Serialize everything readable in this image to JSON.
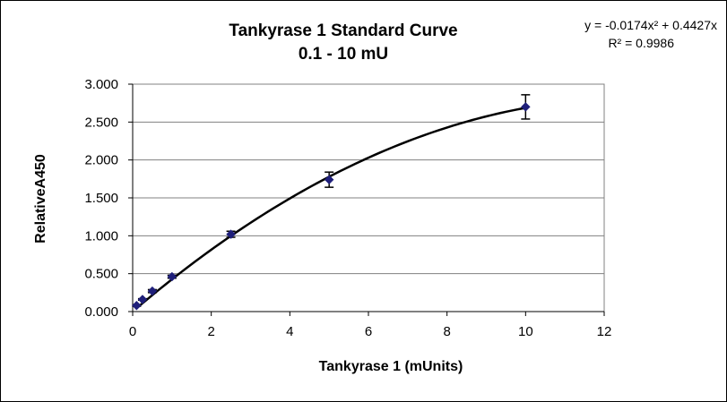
{
  "chart_data": {
    "type": "scatter",
    "title": "Tankyrase 1 Standard Curve",
    "subtitle": "0.1 - 10 mU",
    "xlabel": "Tankyrase 1 (mUnits)",
    "ylabel": "RelativeA450",
    "xlim": [
      0,
      12
    ],
    "ylim": [
      0,
      3.0
    ],
    "x_ticks": [
      0,
      2,
      4,
      6,
      8,
      10,
      12
    ],
    "y_ticks": [
      0,
      0.5,
      1.0,
      1.5,
      2.0,
      2.5,
      3.0
    ],
    "x_tick_labels": [
      "0",
      "2",
      "4",
      "6",
      "8",
      "10",
      "12"
    ],
    "y_tick_labels": [
      "0.000",
      "0.500",
      "1.000",
      "1.500",
      "2.000",
      "2.500",
      "3.000"
    ],
    "grid": "horizontal",
    "points": [
      {
        "x": 0.1,
        "y": 0.08,
        "err": 0.01
      },
      {
        "x": 0.25,
        "y": 0.16,
        "err": 0.01
      },
      {
        "x": 0.5,
        "y": 0.27,
        "err": 0.02
      },
      {
        "x": 1.0,
        "y": 0.46,
        "err": 0.02
      },
      {
        "x": 2.5,
        "y": 1.02,
        "err": 0.04
      },
      {
        "x": 5.0,
        "y": 1.74,
        "err": 0.1
      },
      {
        "x": 10.0,
        "y": 2.7,
        "err": 0.16
      }
    ],
    "trendline": {
      "type": "polynomial",
      "a": -0.0174,
      "b": 0.4427,
      "c": 0
    },
    "equation_text": "y = -0.0174x² + 0.4427x",
    "r2_text": "R² = 0.9986",
    "colors": {
      "marker": "#1f1f7a",
      "line": "#000000",
      "grid": "#808080"
    }
  }
}
